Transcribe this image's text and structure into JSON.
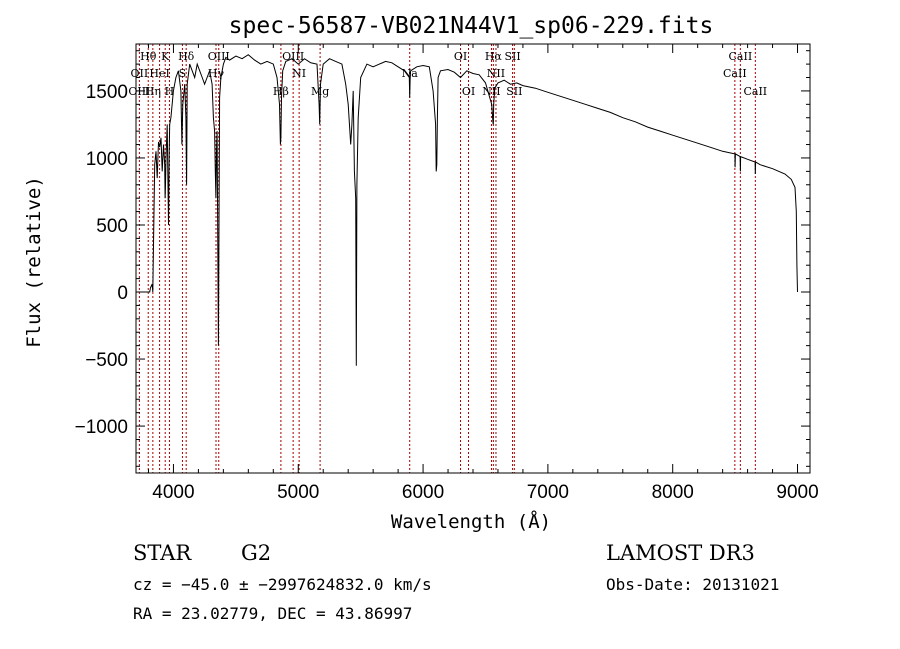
{
  "chart_data": {
    "type": "line",
    "title": "spec-56587-VB021N44V1_sp06-229.fits",
    "xlabel": "Wavelength (Å)",
    "ylabel": "Flux (relative)",
    "xlim": [
      3700,
      9100
    ],
    "ylim": [
      -1350,
      1850
    ],
    "x_ticks": [
      4000,
      5000,
      6000,
      7000,
      8000,
      9000
    ],
    "y_ticks": [
      -1000,
      -500,
      0,
      500,
      1000,
      1500
    ],
    "x_tick_labels": [
      "4000",
      "5000",
      "6000",
      "7000",
      "8000",
      "9000"
    ],
    "y_tick_labels": [
      "−1000",
      "−500",
      "0",
      "500",
      "1000",
      "1500"
    ],
    "series": [
      {
        "name": "spectrum",
        "x": [
          3750,
          3810,
          3815,
          3830,
          3835,
          3850,
          3860,
          3870,
          3880,
          3890,
          3900,
          3910,
          3920,
          3930,
          3933,
          3936,
          3940,
          3950,
          3960,
          3966,
          3970,
          3980,
          4000,
          4020,
          4040,
          4060,
          4068,
          4075,
          4090,
          4100,
          4105,
          4110,
          4130,
          4150,
          4170,
          4190,
          4210,
          4230,
          4250,
          4270,
          4290,
          4310,
          4320,
          4330,
          4335,
          4340,
          4345,
          4350,
          4360,
          4370,
          4380,
          4400,
          4420,
          4450,
          4500,
          4550,
          4600,
          4650,
          4700,
          4750,
          4800,
          4830,
          4850,
          4857,
          4861,
          4866,
          4875,
          4900,
          4950,
          5000,
          5050,
          5100,
          5150,
          5167,
          5172,
          5178,
          5200,
          5250,
          5300,
          5350,
          5380,
          5400,
          5420,
          5430,
          5440,
          5450,
          5460,
          5465,
          5470,
          5480,
          5500,
          5550,
          5600,
          5650,
          5700,
          5750,
          5800,
          5850,
          5890,
          5893,
          5896,
          5900,
          5950,
          6000,
          6050,
          6080,
          6100,
          6105,
          6110,
          6115,
          6120,
          6140,
          6200,
          6250,
          6300,
          6350,
          6400,
          6450,
          6500,
          6550,
          6560,
          6563,
          6566,
          6575,
          6600,
          6650,
          6700,
          6750,
          6800,
          6900,
          7000,
          7100,
          7200,
          7300,
          7400,
          7500,
          7600,
          7700,
          7800,
          7900,
          8000,
          8100,
          8200,
          8300,
          8400,
          8498,
          8500,
          8502,
          8540,
          8542,
          8544,
          8600,
          8660,
          8662,
          8664,
          8700,
          8800,
          8900,
          8950,
          8980,
          8990,
          8995,
          9000
        ],
        "values": [
          0,
          0,
          30,
          60,
          0,
          950,
          1050,
          850,
          1120,
          1080,
          1150,
          900,
          1100,
          950,
          700,
          800,
          1000,
          1250,
          500,
          1050,
          1250,
          1300,
          1500,
          1600,
          1650,
          1500,
          1100,
          1400,
          1550,
          1300,
          800,
          1550,
          1700,
          1650,
          1600,
          1700,
          1650,
          1600,
          1550,
          1600,
          1650,
          1550,
          1300,
          1200,
          900,
          700,
          1050,
          1200,
          -400,
          1450,
          1600,
          1700,
          1750,
          1730,
          1760,
          1740,
          1770,
          1730,
          1700,
          1720,
          1700,
          1600,
          1400,
          1100,
          1150,
          1450,
          1650,
          1720,
          1740,
          1700,
          1740,
          1710,
          1700,
          1400,
          1250,
          1550,
          1700,
          1740,
          1720,
          1700,
          1550,
          1400,
          1100,
          1250,
          1500,
          900,
          700,
          -550,
          800,
          1300,
          1600,
          1700,
          1680,
          1700,
          1720,
          1710,
          1680,
          1650,
          1600,
          1450,
          1580,
          1650,
          1680,
          1690,
          1680,
          1500,
          1250,
          900,
          950,
          1300,
          1600,
          1650,
          1660,
          1640,
          1600,
          1650,
          1630,
          1620,
          1560,
          1400,
          1260,
          1250,
          1400,
          1520,
          1560,
          1580,
          1550,
          1560,
          1540,
          1520,
          1490,
          1460,
          1430,
          1400,
          1370,
          1340,
          1300,
          1270,
          1230,
          1200,
          1170,
          1140,
          1110,
          1080,
          1050,
          1030,
          930,
          1030,
          1010,
          900,
          1010,
          990,
          970,
          880,
          970,
          950,
          920,
          880,
          840,
          780,
          600,
          200,
          0
        ]
      }
    ],
    "emission_lines": [
      {
        "label": "Hθ",
        "x": 3798,
        "row": 0
      },
      {
        "label": "OII",
        "x": 3727,
        "row": 1
      },
      {
        "label": "OIII",
        "x": 3727,
        "row": 2
      },
      {
        "label": "Hη",
        "x": 3835,
        "row": 2
      },
      {
        "label": "HeI",
        "x": 3889,
        "row": 1
      },
      {
        "label": "K",
        "x": 3934,
        "row": 0
      },
      {
        "label": "H",
        "x": 3968,
        "row": 2
      },
      {
        "label": "S",
        "x": 4072,
        "row": 1
      },
      {
        "label": "Hδ",
        "x": 4102,
        "row": 0
      },
      {
        "label": "OIII",
        "x": 4363,
        "row": 0
      },
      {
        "label": "Hγ",
        "x": 4341,
        "row": 1
      },
      {
        "label": "Hβ",
        "x": 4861,
        "row": 2
      },
      {
        "label": "OIII",
        "x": 4959,
        "row": 0
      },
      {
        "label": "NI",
        "x": 5007,
        "row": 1
      },
      {
        "label": "Mg",
        "x": 5175,
        "row": 2
      },
      {
        "label": "Na",
        "x": 5893,
        "row": 1
      },
      {
        "label": "OI",
        "x": 6300,
        "row": 0
      },
      {
        "label": "OI",
        "x": 6364,
        "row": 2
      },
      {
        "label": "Hα",
        "x": 6563,
        "row": 0
      },
      {
        "label": "NII",
        "x": 6584,
        "row": 1
      },
      {
        "label": "SII",
        "x": 6717,
        "row": 0
      },
      {
        "label": "NII",
        "x": 6548,
        "row": 2
      },
      {
        "label": "SII",
        "x": 6731,
        "row": 2
      },
      {
        "label": "CaII",
        "x": 8498,
        "row": 1
      },
      {
        "label": "CaII",
        "x": 8542,
        "row": 0
      },
      {
        "label": "CaII",
        "x": 8662,
        "row": 2
      }
    ],
    "line_color": "#aa0000"
  },
  "info": {
    "object_class": "STAR",
    "subclass": "G2",
    "survey": "LAMOST DR3",
    "cz": "cz = −45.0 ± −2997624832.0 km/s",
    "obs_date": "Obs-Date: 20131021",
    "coords": "RA =  23.02779, DEC =  43.86997"
  }
}
